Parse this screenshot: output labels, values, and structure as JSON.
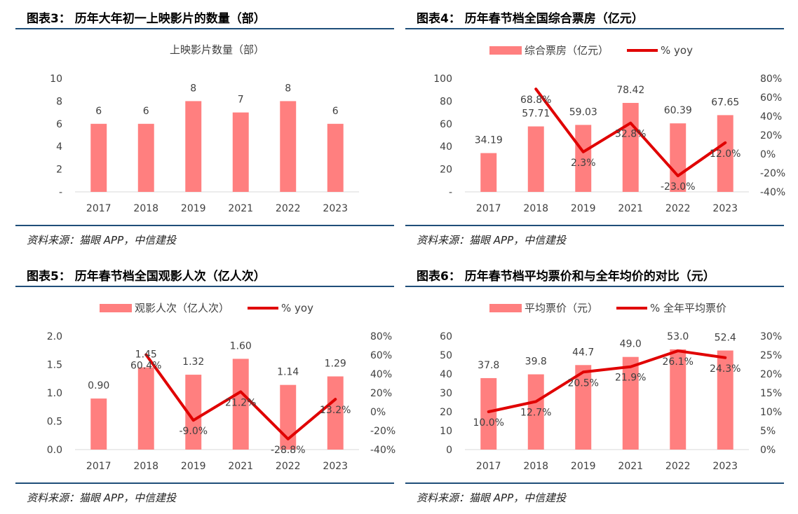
{
  "colors": {
    "bar": "#ff7f7f",
    "line": "#e00000",
    "rule": "#1f4e79",
    "tick": "#404040"
  },
  "source_text": "资料来源：猫眼 APP，中信建投",
  "chart_data": [
    {
      "panel_title": "图表3： 历年大年初一上映影片的数量（部）",
      "type": "bar",
      "title": "上映影片数量（部）",
      "categories": [
        "2017",
        "2018",
        "2019",
        "2021",
        "2022",
        "2023"
      ],
      "series": [
        {
          "name": "上映影片数量（部）",
          "axis": "left",
          "values": [
            6,
            6,
            8,
            7,
            8,
            6
          ],
          "labels": [
            "6",
            "6",
            "8",
            "7",
            "8",
            "6"
          ]
        }
      ],
      "ylim": [
        0,
        10
      ],
      "yticks": [
        "-",
        "2",
        "4",
        "6",
        "8",
        "10"
      ],
      "y2lim": null,
      "y2ticks": []
    },
    {
      "panel_title": "图表4： 历年春节档全国综合票房（亿元）",
      "type": "bar+line",
      "legend": [
        "综合票房（亿元）",
        "% yoy"
      ],
      "categories": [
        "2017",
        "2018",
        "2019",
        "2021",
        "2022",
        "2023"
      ],
      "series": [
        {
          "name": "综合票房（亿元）",
          "axis": "left",
          "values": [
            34.19,
            57.71,
            59.03,
            78.42,
            60.39,
            67.65
          ],
          "labels": [
            "34.19",
            "57.71",
            "59.03",
            "78.42",
            "60.39",
            "67.65"
          ]
        },
        {
          "name": "% yoy",
          "axis": "right",
          "values": [
            null,
            68.8,
            2.3,
            32.8,
            -23.0,
            12.0
          ],
          "labels": [
            "",
            "68.8%",
            "2.3%",
            "32.8%",
            "-23.0%",
            "12.0%"
          ]
        }
      ],
      "ylim": [
        0,
        100
      ],
      "yticks": [
        "-",
        "20",
        "40",
        "60",
        "80",
        "100"
      ],
      "y2lim": [
        -40,
        80
      ],
      "y2ticks": [
        "-40%",
        "-20%",
        "0%",
        "20%",
        "40%",
        "60%",
        "80%"
      ]
    },
    {
      "panel_title": "图表5： 历年春节档全国观影人次（亿人次）",
      "type": "bar+line",
      "legend": [
        "观影人次（亿人次）",
        "% yoy"
      ],
      "categories": [
        "2017",
        "2018",
        "2019",
        "2021",
        "2022",
        "2023"
      ],
      "series": [
        {
          "name": "观影人次（亿人次）",
          "axis": "left",
          "values": [
            0.9,
            1.45,
            1.32,
            1.6,
            1.14,
            1.29
          ],
          "labels": [
            "0.90",
            "1.45",
            "1.32",
            "1.60",
            "1.14",
            "1.29"
          ]
        },
        {
          "name": "% yoy",
          "axis": "right",
          "values": [
            null,
            60.4,
            -9.0,
            21.2,
            -28.8,
            13.2
          ],
          "labels": [
            "",
            "60.4%",
            "-9.0%",
            "21.2%",
            "-28.8%",
            "13.2%"
          ]
        }
      ],
      "ylim": [
        0,
        2.0
      ],
      "yticks": [
        "0.0",
        "0.5",
        "1.0",
        "1.5",
        "2.0"
      ],
      "y2lim": [
        -40,
        80
      ],
      "y2ticks": [
        "-40%",
        "-20%",
        "0%",
        "20%",
        "40%",
        "60%",
        "80%"
      ]
    },
    {
      "panel_title": "图表6： 历年春节档平均票价和与全年均价的对比（元）",
      "type": "bar+line",
      "legend": [
        "平均票价（元）",
        "% 全年平均票价"
      ],
      "categories": [
        "2017",
        "2018",
        "2019",
        "2021",
        "2022",
        "2023"
      ],
      "series": [
        {
          "name": "平均票价（元）",
          "axis": "left",
          "values": [
            37.8,
            39.8,
            44.7,
            49.0,
            53.0,
            52.4
          ],
          "labels": [
            "37.8",
            "39.8",
            "44.7",
            "49.0",
            "53.0",
            "52.4"
          ]
        },
        {
          "name": "% 全年平均票价",
          "axis": "right",
          "values": [
            10.0,
            12.7,
            20.5,
            21.9,
            26.1,
            24.3
          ],
          "labels": [
            "10.0%",
            "12.7%",
            "20.5%",
            "21.9%",
            "26.1%",
            "24.3%"
          ]
        }
      ],
      "ylim": [
        0,
        60
      ],
      "yticks": [
        "0",
        "10",
        "20",
        "30",
        "40",
        "50",
        "60"
      ],
      "y2lim": [
        0,
        30
      ],
      "y2ticks": [
        "0%",
        "5%",
        "10%",
        "15%",
        "20%",
        "25%",
        "30%"
      ]
    }
  ]
}
